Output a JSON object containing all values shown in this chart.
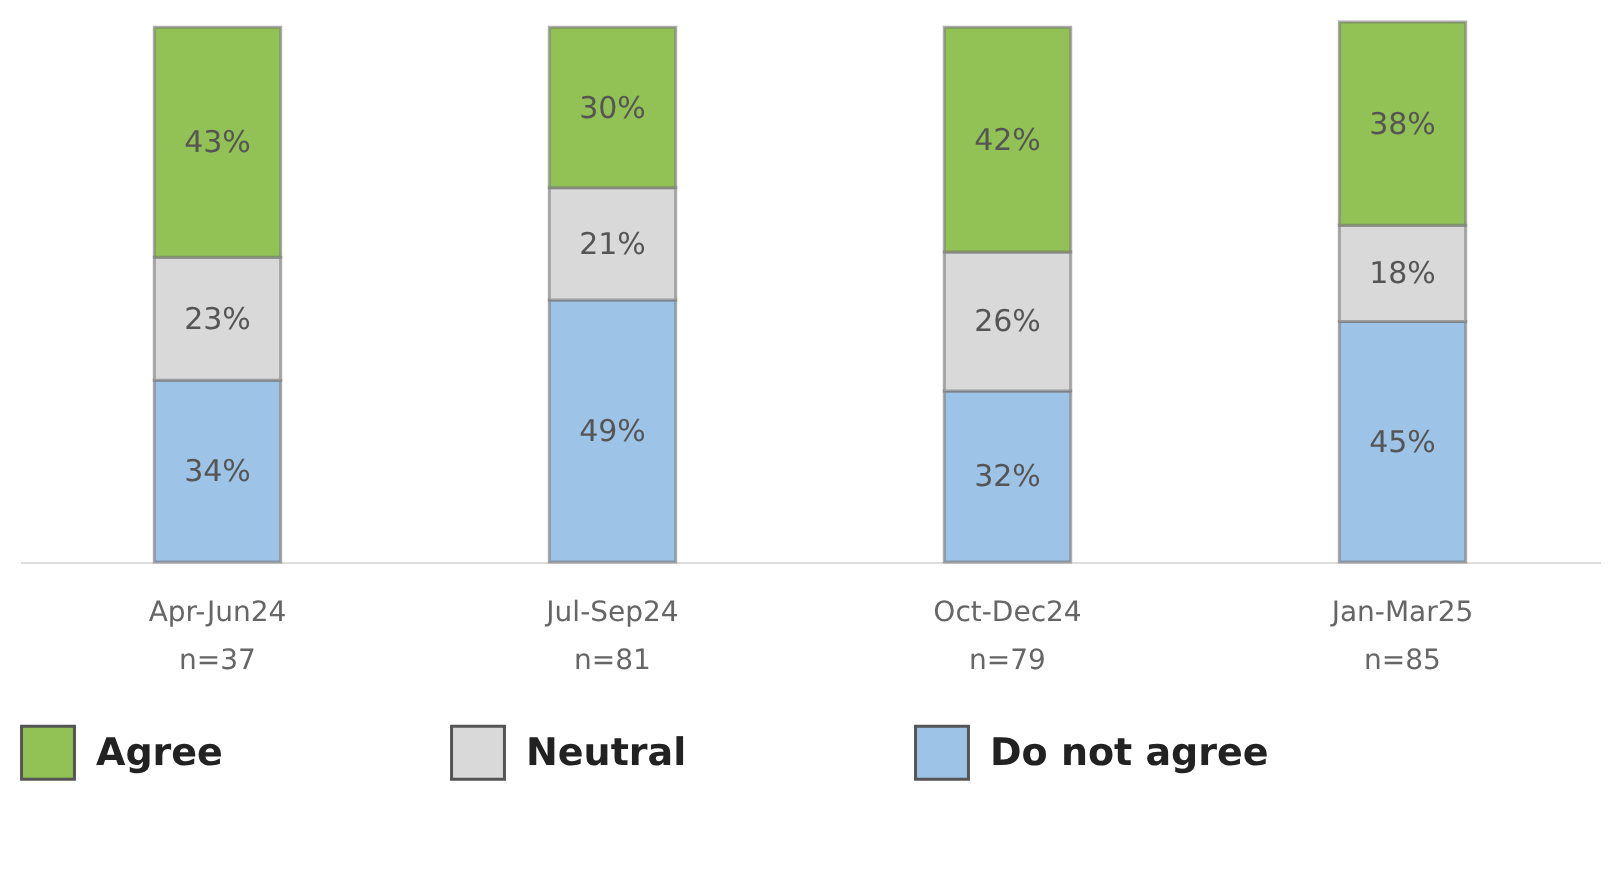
{
  "chart_data": {
    "type": "bar",
    "stacked": true,
    "legend": "bottom",
    "grid": false,
    "tick_labels": "x",
    "categories": [
      "Apr-Jun24\nn=37",
      "Jul-Sep24\nn=81",
      "Oct-Dec24\nn=79",
      "Jan-Mar25\nn=85"
    ],
    "series": [
      {
        "name": "Do not agree",
        "color": "#9dc3e6",
        "values": [
          34,
          49,
          32,
          45
        ],
        "value_labels": [
          "34%",
          "49%",
          "32%",
          "45%"
        ]
      },
      {
        "name": "Neutral",
        "color": "#d9d9d9",
        "values": [
          23,
          21,
          26,
          18
        ],
        "value_labels": [
          "23%",
          "21%",
          "26%",
          "18%"
        ]
      },
      {
        "name": "Agree",
        "color": "#92c255",
        "values": [
          43,
          30,
          42,
          38
        ],
        "value_labels": [
          "43%",
          "30%",
          "42%",
          "38%"
        ]
      }
    ]
  }
}
